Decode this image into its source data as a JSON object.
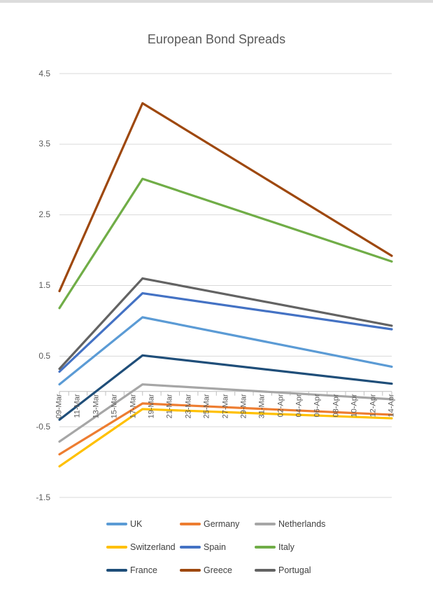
{
  "window": {
    "title": "European Bond Spreads"
  },
  "chart_data": {
    "type": "line",
    "title": "European Bond Spreads",
    "xlabel": "",
    "ylabel": "",
    "ylim": [
      -1.5,
      4.5
    ],
    "yticks": [
      4.5,
      3.5,
      2.5,
      1.5,
      0.5,
      -0.5,
      -1.5
    ],
    "x_tick_labels": [
      "09-Mar",
      "11-Mar",
      "13-Mar",
      "15-Mar",
      "17-Mar",
      "19-Mar",
      "21-Mar",
      "23-Mar",
      "25-Mar",
      "27-Mar",
      "29-Mar",
      "31-Mar",
      "02-Apr",
      "04-Apr",
      "06-Apr",
      "08-Apr",
      "10-Apr",
      "12-Apr",
      "14-Apr"
    ],
    "x_axis_total_days": 36,
    "x_tick_day_step": 2,
    "data_point_dates": [
      "09-Mar",
      "18-Mar",
      "14-Apr"
    ],
    "data_point_day_offsets": [
      0,
      9,
      36
    ],
    "grid": true,
    "legend_position": "bottom",
    "legend_rows": [
      [
        "UK",
        "Germany",
        "Netherlands"
      ],
      [
        "Switzerland",
        "Spain",
        "Italy"
      ],
      [
        "France",
        "Greece",
        "Portugal"
      ]
    ],
    "series": [
      {
        "name": "UK",
        "color": "#5B9BD5",
        "values": [
          0.1,
          1.05,
          0.35
        ]
      },
      {
        "name": "Germany",
        "color": "#ED7D31",
        "values": [
          -0.89,
          -0.17,
          -0.33
        ]
      },
      {
        "name": "Netherlands",
        "color": "#A6A6A6",
        "values": [
          -0.71,
          0.1,
          -0.11
        ]
      },
      {
        "name": "Switzerland",
        "color": "#FFC000",
        "values": [
          -1.06,
          -0.25,
          -0.38
        ]
      },
      {
        "name": "Spain",
        "color": "#4472C4",
        "values": [
          0.28,
          1.39,
          0.88
        ]
      },
      {
        "name": "Italy",
        "color": "#70AD47",
        "values": [
          1.18,
          3.01,
          1.84
        ]
      },
      {
        "name": "France",
        "color": "#1F4E79",
        "values": [
          -0.4,
          0.51,
          0.11
        ]
      },
      {
        "name": "Greece",
        "color": "#9E480E",
        "values": [
          1.42,
          4.08,
          1.92
        ]
      },
      {
        "name": "Portugal",
        "color": "#636363",
        "values": [
          0.32,
          1.6,
          0.93
        ]
      }
    ],
    "styles": {
      "title_color": "#595959",
      "axis_label_color": "#595959",
      "legend_text_color": "#404040",
      "gridline_color": "#D9D9D9",
      "axis_line_color": "#BFBFBF",
      "background": "#FFFFFF"
    }
  }
}
